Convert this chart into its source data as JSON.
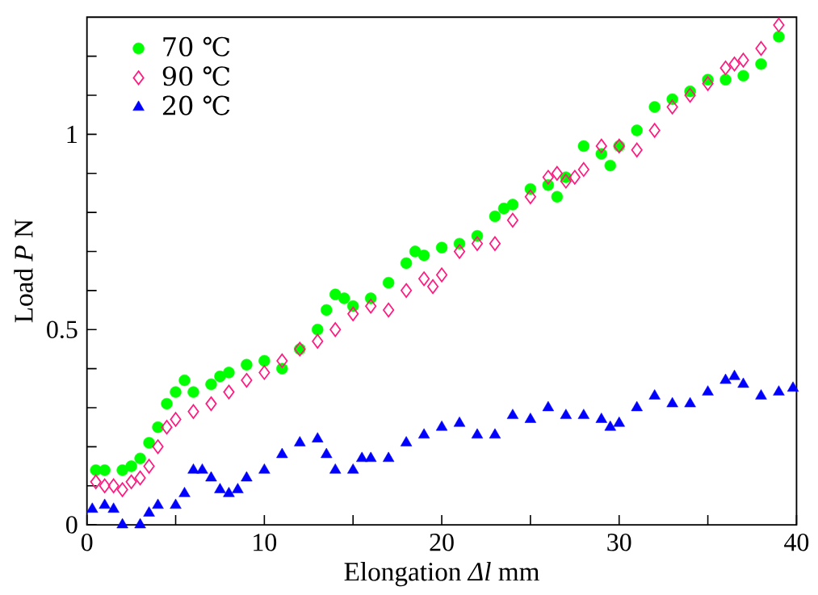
{
  "chart_data": {
    "type": "scatter",
    "xlabel": "Elongation *Δl*  mm",
    "ylabel": "Load *P*  N",
    "xlim": [
      0,
      40
    ],
    "ylim": [
      0,
      1.3
    ],
    "xticks": [
      0,
      {
        "value": 5,
        "label": null
      },
      10,
      {
        "value": 15,
        "label": null
      },
      20,
      {
        "value": 25,
        "label": null
      },
      30,
      {
        "value": 35,
        "label": null
      },
      40
    ],
    "yticks": [
      0,
      {
        "value": 0.1,
        "label": null
      },
      {
        "value": 0.2,
        "label": null
      },
      {
        "value": 0.3,
        "label": null
      },
      {
        "value": 0.4,
        "label": null
      },
      0.5,
      {
        "value": 0.6,
        "label": null
      },
      {
        "value": 0.7,
        "label": null
      },
      {
        "value": 0.8,
        "label": null
      },
      {
        "value": 0.9,
        "label": null
      },
      1,
      {
        "value": 1.1,
        "label": null
      },
      {
        "value": 1.2,
        "label": null
      }
    ],
    "grid": false,
    "legend": "top left",
    "series": [
      {
        "name": "70 ℃",
        "color": "#00ff00",
        "marker": "circle",
        "x": [
          0.5,
          1,
          2,
          2.5,
          3,
          3.5,
          4,
          4.5,
          5,
          5.5,
          6,
          7,
          7.5,
          8,
          9,
          10,
          11,
          12,
          13,
          13.5,
          14,
          14.5,
          15,
          16,
          17,
          18,
          18.5,
          19,
          20,
          21,
          22,
          23,
          23.5,
          24,
          25,
          26,
          26.5,
          27,
          28,
          29,
          29.5,
          30,
          31,
          32,
          33,
          34,
          35,
          36,
          37,
          38,
          39
        ],
        "values": [
          0.14,
          0.14,
          0.14,
          0.15,
          0.17,
          0.21,
          0.25,
          0.31,
          0.34,
          0.37,
          0.34,
          0.36,
          0.38,
          0.39,
          0.41,
          0.42,
          0.4,
          0.45,
          0.5,
          0.55,
          0.59,
          0.58,
          0.56,
          0.58,
          0.62,
          0.67,
          0.7,
          0.69,
          0.71,
          0.72,
          0.74,
          0.79,
          0.81,
          0.82,
          0.86,
          0.87,
          0.84,
          0.89,
          0.97,
          0.95,
          0.92,
          0.97,
          1.01,
          1.07,
          1.09,
          1.11,
          1.14,
          1.14,
          1.15,
          1.18,
          1.25
        ]
      },
      {
        "name": "90 ℃",
        "color": "#ff1a80",
        "marker": "diamond",
        "x": [
          0.5,
          1,
          1.5,
          2,
          2.5,
          3,
          3.5,
          4,
          4.5,
          5,
          6,
          7,
          8,
          9,
          10,
          11,
          12,
          13,
          14,
          15,
          16,
          17,
          18,
          19,
          19.5,
          20,
          21,
          22,
          23,
          24,
          25,
          26,
          26.5,
          27,
          27.5,
          28,
          29,
          30,
          31,
          32,
          33,
          34,
          35,
          36,
          36.5,
          37,
          38,
          39
        ],
        "values": [
          0.11,
          0.1,
          0.1,
          0.09,
          0.11,
          0.12,
          0.15,
          0.2,
          0.25,
          0.27,
          0.29,
          0.31,
          0.34,
          0.37,
          0.39,
          0.42,
          0.45,
          0.47,
          0.5,
          0.54,
          0.56,
          0.55,
          0.6,
          0.63,
          0.61,
          0.64,
          0.7,
          0.72,
          0.72,
          0.78,
          0.84,
          0.89,
          0.9,
          0.88,
          0.89,
          0.91,
          0.97,
          0.97,
          0.96,
          1.01,
          1.07,
          1.1,
          1.13,
          1.17,
          1.18,
          1.19,
          1.22,
          1.28
        ]
      },
      {
        "name": "20 ℃",
        "color": "#0000ff",
        "marker": "triangle",
        "x": [
          0.3,
          1,
          1.5,
          2,
          3,
          3.5,
          4,
          5,
          5.5,
          6,
          6.5,
          7,
          7.5,
          8,
          8.5,
          9,
          10,
          11,
          12,
          13,
          13.5,
          14,
          15,
          15.5,
          16,
          17,
          18,
          19,
          20,
          21,
          22,
          23,
          24,
          25,
          26,
          27,
          28,
          29,
          29.5,
          30,
          31,
          32,
          33,
          34,
          35,
          36,
          36.5,
          37,
          38,
          39,
          39.8
        ],
        "values": [
          0.04,
          0.05,
          0.04,
          0.0,
          0.0,
          0.03,
          0.05,
          0.05,
          0.08,
          0.14,
          0.14,
          0.12,
          0.09,
          0.08,
          0.09,
          0.12,
          0.14,
          0.18,
          0.21,
          0.22,
          0.18,
          0.14,
          0.14,
          0.17,
          0.17,
          0.17,
          0.21,
          0.23,
          0.25,
          0.26,
          0.23,
          0.23,
          0.28,
          0.27,
          0.3,
          0.28,
          0.28,
          0.27,
          0.25,
          0.26,
          0.3,
          0.33,
          0.31,
          0.31,
          0.34,
          0.37,
          0.38,
          0.36,
          0.33,
          0.34,
          0.35
        ]
      }
    ]
  }
}
